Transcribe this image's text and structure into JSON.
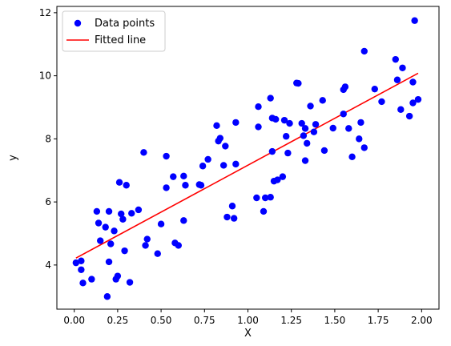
{
  "chart_data": {
    "type": "scatter",
    "title": "",
    "xlabel": "X",
    "ylabel": "y",
    "xlim": [
      -0.1,
      2.1
    ],
    "ylim": [
      2.6,
      12.2
    ],
    "xticks": [
      0.0,
      0.25,
      0.5,
      0.75,
      1.0,
      1.25,
      1.5,
      1.75,
      2.0
    ],
    "xtick_labels": [
      "0.00",
      "0.25",
      "0.50",
      "0.75",
      "1.00",
      "1.25",
      "1.50",
      "1.75",
      "2.00"
    ],
    "yticks": [
      4,
      6,
      8,
      10,
      12
    ],
    "ytick_labels": [
      "4",
      "6",
      "8",
      "10",
      "12"
    ],
    "grid": false,
    "legend": {
      "location": "upper-left",
      "entries": [
        {
          "label": "Data points",
          "marker": "circle",
          "color": "#0000ff"
        },
        {
          "label": "Fitted line",
          "marker": "line",
          "color": "#ff0000"
        }
      ]
    },
    "series": [
      {
        "name": "Data points",
        "kind": "scatter",
        "color": "#0000ff",
        "x": [
          0.01,
          0.04,
          0.04,
          0.05,
          0.1,
          0.13,
          0.14,
          0.15,
          0.18,
          0.19,
          0.2,
          0.2,
          0.21,
          0.23,
          0.24,
          0.25,
          0.26,
          0.27,
          0.28,
          0.29,
          0.3,
          0.32,
          0.33,
          0.37,
          0.4,
          0.41,
          0.42,
          0.48,
          0.5,
          0.53,
          0.53,
          0.57,
          0.58,
          0.6,
          0.63,
          0.63,
          0.64,
          0.72,
          0.73,
          0.74,
          0.77,
          0.82,
          0.83,
          0.84,
          0.86,
          0.87,
          0.88,
          0.91,
          0.92,
          0.93,
          0.93,
          1.05,
          1.06,
          1.06,
          1.09,
          1.1,
          1.13,
          1.13,
          1.14,
          1.14,
          1.15,
          1.16,
          1.17,
          1.2,
          1.21,
          1.22,
          1.23,
          1.24,
          1.28,
          1.29,
          1.31,
          1.32,
          1.33,
          1.33,
          1.34,
          1.36,
          1.38,
          1.39,
          1.43,
          1.44,
          1.49,
          1.55,
          1.55,
          1.56,
          1.58,
          1.6,
          1.64,
          1.65,
          1.67,
          1.67,
          1.73,
          1.77,
          1.85,
          1.86,
          1.88,
          1.89,
          1.93,
          1.95,
          1.95,
          1.96,
          1.98
        ],
        "y": [
          4.07,
          3.85,
          4.13,
          3.43,
          3.55,
          5.7,
          5.33,
          4.77,
          5.2,
          3.0,
          5.7,
          4.1,
          4.67,
          5.08,
          3.55,
          3.65,
          6.62,
          5.62,
          5.45,
          4.45,
          6.53,
          3.45,
          5.64,
          5.75,
          7.57,
          4.62,
          4.82,
          4.36,
          5.3,
          6.45,
          7.45,
          6.8,
          4.7,
          4.62,
          5.41,
          6.82,
          6.53,
          6.55,
          6.53,
          7.14,
          7.35,
          8.42,
          7.93,
          8.02,
          7.16,
          7.77,
          5.52,
          5.87,
          5.48,
          7.2,
          8.52,
          6.13,
          8.38,
          9.02,
          5.7,
          6.13,
          9.29,
          6.15,
          7.6,
          8.66,
          6.66,
          8.62,
          6.7,
          6.8,
          8.59,
          8.08,
          7.55,
          8.49,
          9.77,
          9.76,
          8.49,
          8.1,
          8.33,
          7.31,
          7.86,
          9.04,
          8.22,
          8.46,
          9.22,
          7.63,
          8.34,
          9.56,
          8.79,
          9.65,
          8.33,
          7.43,
          8.0,
          8.52,
          10.78,
          7.72,
          9.58,
          9.18,
          10.52,
          9.87,
          8.93,
          10.25,
          8.72,
          9.8,
          9.14,
          11.75,
          9.25
        ]
      },
      {
        "name": "Fitted line",
        "kind": "line",
        "color": "#ff0000",
        "x": [
          0.01,
          1.98
        ],
        "y": [
          4.22,
          10.08
        ]
      }
    ]
  }
}
